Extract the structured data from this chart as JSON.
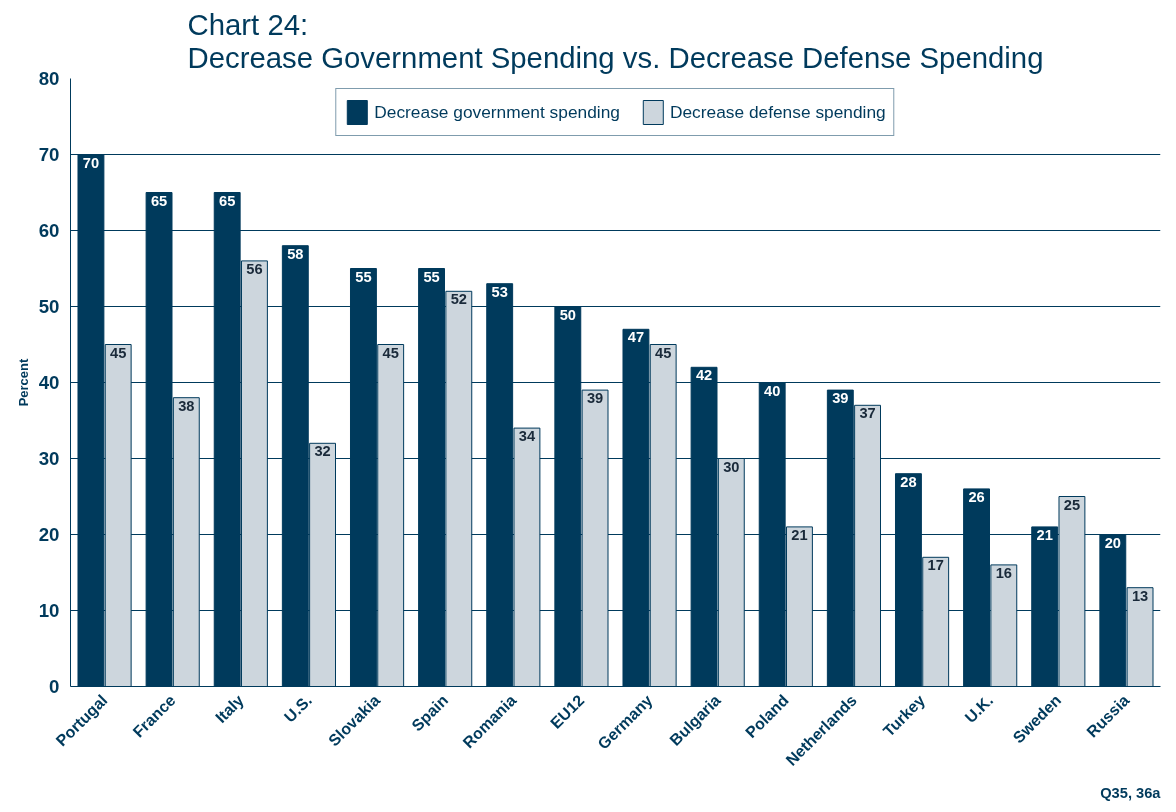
{
  "chart_data": {
    "type": "bar",
    "title": "Chart 24:\nDecrease Government Spending vs. Decrease Defense Spending",
    "ylabel": "Percent",
    "categories": [
      "Portugal",
      "France",
      "Italy",
      "U.S.",
      "Slovakia",
      "Spain",
      "Romania",
      "EU12",
      "Germany",
      "Bulgaria",
      "Poland",
      "Netherlands",
      "Turkey",
      "U.K.",
      "Sweden",
      "Russia"
    ],
    "series": [
      {
        "name": "Decrease government spending",
        "color": "#003a5c",
        "values": [
          70,
          65,
          65,
          58,
          55,
          55,
          53,
          50,
          47,
          42,
          40,
          39,
          28,
          26,
          21,
          20
        ]
      },
      {
        "name": "Decrease defense spending",
        "color": "#cdd6dd",
        "values": [
          45,
          38,
          56,
          32,
          45,
          52,
          34,
          39,
          45,
          30,
          21,
          37,
          17,
          16,
          25,
          13
        ]
      }
    ],
    "ylim": [
      0,
      80
    ],
    "yticks": [
      0,
      10,
      20,
      30,
      40,
      50,
      60,
      70,
      80
    ],
    "grid": "y",
    "legend": "top",
    "data_labels": true,
    "annotations": [
      "Q35, 36a"
    ]
  }
}
